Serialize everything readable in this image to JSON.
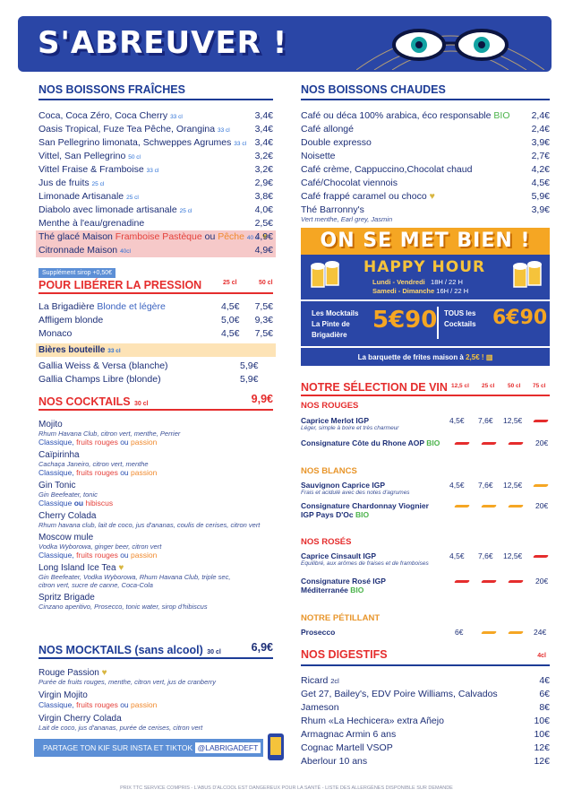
{
  "header": {
    "title": "S'ABREUVER !"
  },
  "fraiches": {
    "title": "NOS BOISSONS FRAÎCHES",
    "items": [
      {
        "name": "Coca, Coca Zéro, Coca Cherry",
        "vol": "33 cl",
        "price": "3,4€"
      },
      {
        "name": "Oasis Tropical, Fuze Tea Pêche, Orangina",
        "vol": "33 cl",
        "price": "3,4€"
      },
      {
        "name": "San Pellegrino limonata, Schweppes Agrumes",
        "vol": "33 cl",
        "price": "3,4€"
      },
      {
        "name": "Vittel, San Pellegrino",
        "vol": "50 cl",
        "price": "3,2€"
      },
      {
        "name": "Vittel Fraise & Framboise",
        "vol": "33 cl",
        "price": "3,2€"
      },
      {
        "name": "Jus de fruits",
        "vol": "25 cl",
        "price": "2,9€"
      },
      {
        "name": "Limonade Artisanale",
        "vol": "25 cl",
        "price": "3,8€"
      },
      {
        "name": "Diabolo avec limonade artisanale",
        "vol": "25 cl",
        "price": "4,0€"
      },
      {
        "name": "Menthe à l'eau/grenadine",
        "vol": "",
        "price": "2,5€"
      }
    ],
    "the_glace": {
      "a": "Thé glacé Maison ",
      "b": "Framboise Pastèque",
      "c": " ou ",
      "d": "Pêche",
      "vol": "40 cl",
      "price": "4,9€"
    },
    "citronnade": {
      "name": "Citronnade Maison",
      "vol": "40cl",
      "price": "4,9€"
    },
    "supplement": "Supplément sirop +0,50€"
  },
  "pression": {
    "title": "POUR LIBÉRER LA PRESSION",
    "col1": "25 cl",
    "col2": "50 cl",
    "items": [
      {
        "a": "La Brigadière",
        "b": " Blonde et légère",
        "p1": "4,5€",
        "p2": "7,5€"
      },
      {
        "a": "Affligem blonde",
        "b": "",
        "p1": "5,0€",
        "p2": "9,3€"
      },
      {
        "a": "Monaco",
        "b": "",
        "p1": "4,5€",
        "p2": "7,5€"
      }
    ]
  },
  "bouteille": {
    "title": "Bières bouteille",
    "vol": "33 cl",
    "items": [
      {
        "name": "Gallia Weiss & Versa (blanche)",
        "price": "5,9€"
      },
      {
        "name": "Gallia Champs Libre (blonde)",
        "price": "5,9€"
      }
    ]
  },
  "cocktails": {
    "title": "NOS COCKTAILS",
    "vol": "30 cl",
    "price": "9,9€",
    "items": [
      {
        "name": "Mojito",
        "desc": "Rhum Havana Club, citron vert, menthe, Perrier",
        "opt": true
      },
      {
        "name": "Caïpirinha",
        "desc": "Cachaça Janeiro, citron vert, menthe",
        "opt": true
      },
      {
        "name": "Gin Tonic",
        "desc": "Gin Beefeater, tonic",
        "opt2": true
      },
      {
        "name": "Cherry Colada",
        "desc": "Rhum havana club, lait de coco, jus d'ananas, coulis de cerises, citron vert"
      },
      {
        "name": "Moscow mule",
        "desc": "Vodka Wyborowa, ginger beer, citron vert",
        "opt": true
      },
      {
        "name": "Long Island Ice Tea",
        "desc": "Gin Beefeater, Vodka Wyborowa, Rhum Havana Club, triple sec,",
        "desc2": "citron vert, sucre de canne, Coca-Cola"
      },
      {
        "name": "Spritz Brigade",
        "desc": "Cinzano aperitivo, Prosecco, tonic water, sirop d'hibiscus"
      }
    ],
    "opt_words": {
      "classique": "Classique, ",
      "fr": "fruits rouges",
      "ou": " ou ",
      "passion": "passion",
      "hib": "hibiscus",
      "classique2": "Classique "
    }
  },
  "mocktails": {
    "title": "NOS MOCKTAILS (sans alcool)",
    "vol": "30 cl",
    "price": "6,9€",
    "items": [
      {
        "name": "Rouge Passion",
        "desc": "Purée de fruits rouges, menthe, citron vert, jus de cranberry"
      },
      {
        "name": "Virgin Mojito",
        "desc": ""
      },
      {
        "name": "Virgin Cherry Colada",
        "desc": "Lait de coco, jus d'ananas, purée de cerises, citron vert"
      }
    ]
  },
  "social": {
    "text": "PARTAGE TON KIF SUR INSTA ET TIKTOK",
    "handle": "@LABRIGADEFT"
  },
  "chaudes": {
    "title": "NOS BOISSONS CHAUDES",
    "items": [
      {
        "name": "Café ou déca 100% arabica, éco responsable",
        "tag": "BIO",
        "price": "2,4€"
      },
      {
        "name": "Café allongé",
        "tag": "",
        "price": "2,4€"
      },
      {
        "name": "Double expresso",
        "tag": "",
        "price": "3,9€"
      },
      {
        "name": "Noisette",
        "tag": "",
        "price": "2,7€"
      },
      {
        "name": "Café crème, Cappuccino,Chocolat chaud",
        "tag": "",
        "price": "4,2€"
      },
      {
        "name": "Café/Chocolat viennois",
        "tag": "",
        "price": "4,5€"
      },
      {
        "name": "Café frappé caramel ou choco",
        "tag": "",
        "price": "5,9€"
      },
      {
        "name": "Thé Barronny's",
        "tag": "",
        "price": "3,9€"
      }
    ],
    "the_desc": "Vert menthe, Earl grey, Jasmin"
  },
  "happy": {
    "banner": "ON SE MET BIEN !",
    "title": "HAPPY HOUR",
    "line1a": "Lundi - Vendredi",
    "line1b": "18H / 22 H",
    "line2a": "Samedi - Dimanche",
    "line2b": "16H / 22 H",
    "mock_label": "Les Mocktails",
    "pinte_label": "La Pinte de Brigadière",
    "price1": "5€90",
    "tous_label": "TOUS les Cocktails",
    "price2": "6€90",
    "fries": "La barquette de frites maison à ",
    "fries_price": "2,5€ !"
  },
  "vins": {
    "title": "NOTRE SÉLECTION DE VIN",
    "cols": [
      "12,5 cl",
      "25 cl",
      "50 cl",
      "75 cl"
    ],
    "rouges": {
      "title": "NOS ROUGES"
    },
    "blancs": {
      "title": "NOS BLANCS"
    },
    "roses": {
      "title": "NOS ROSÉS"
    },
    "petillant": {
      "title": "NOTRE PÉTILLANT"
    },
    "w1": {
      "name": "Caprice Merlot IGP",
      "desc": "Léger, simple à boire et très charmeur",
      "p1": "4,5€",
      "p2": "7,6€",
      "p3": "12,5€"
    },
    "w2": {
      "name": "Consignature Côte du Rhone AOP",
      "tag": "BIO",
      "p4": "20€"
    },
    "w3": {
      "name": "Sauvignon Caprice IGP",
      "desc": "Frais et acidulé avec des notes d'agrumes",
      "p1": "4,5€",
      "p2": "7,6€",
      "p3": "12,5€"
    },
    "w4": {
      "name": "Consignature Chardonnay Viognier",
      "name2": "IGP Pays D'Oc",
      "tag": "BIO",
      "p4": "20€"
    },
    "w5": {
      "name": "Caprice Cinsault IGP",
      "desc": "Equilibré, aux arômes de fraises et de framboises",
      "p1": "4,5€",
      "p2": "7,6€",
      "p3": "12,5€"
    },
    "w6": {
      "name": "Consignature Rosé IGP",
      "name2": "Méditerranée",
      "tag": "BIO",
      "p4": "20€"
    },
    "w7": {
      "name": "Prosecco",
      "p1": "6€",
      "p4": "24€"
    }
  },
  "digestifs": {
    "title": "NOS DIGESTIFS",
    "vol": "4cl",
    "items": [
      {
        "name": "Ricard",
        "sub": "2cl",
        "price": "4€"
      },
      {
        "name": "Get 27, Bailey's, EDV Poire Williams, Calvados",
        "sub": "",
        "price": "6€"
      },
      {
        "name": "Jameson",
        "sub": "",
        "price": "8€"
      },
      {
        "name": "Rhum «La Hechicera» extra Añejo",
        "sub": "",
        "price": "10€"
      },
      {
        "name": "Armagnac Armin 6 ans",
        "sub": "",
        "price": "10€"
      },
      {
        "name": "Cognac Martell VSOP",
        "sub": "",
        "price": "12€"
      },
      {
        "name": "Aberlour 10 ans",
        "sub": "",
        "price": "12€"
      }
    ]
  },
  "footer": "PRIX TTC SERVICE COMPRIS - L'ABUS D'ALCOOL EST DANGEREUX POUR LA SANTÉ - LISTE DES ALLERGÈNES DISPONIBLE SUR DEMANDE"
}
